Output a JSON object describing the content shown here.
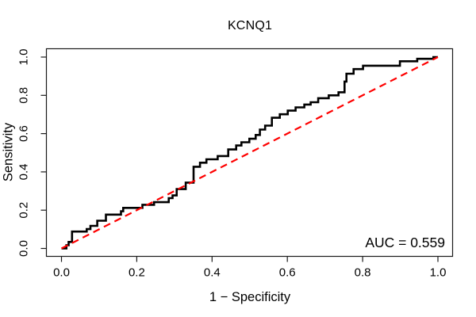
{
  "figure": {
    "title": "KCNQ1",
    "x_axis": {
      "label": "1 − Specificity",
      "tick_labels": [
        "0.0",
        "0.2",
        "0.4",
        "0.6",
        "0.8",
        "1.0"
      ]
    },
    "y_axis": {
      "label": "Sensitivity",
      "tick_labels": [
        "0.0",
        "0.2",
        "0.4",
        "0.6",
        "0.8",
        "1.0"
      ]
    },
    "annotation": {
      "auc_text": "AUC = 0.559"
    },
    "colors": {
      "background": "#ffffff",
      "roc_curve": "#000000",
      "diagonal": "#fe0000",
      "axis": "#1a1a1a",
      "text": "#000000"
    }
  },
  "chart_data": {
    "type": "line",
    "subtype": "roc-step-curve",
    "title": "KCNQ1",
    "xlabel": "1 − Specificity",
    "ylabel": "Sensitivity",
    "xlim": [
      0,
      1
    ],
    "ylim": [
      0,
      1
    ],
    "x_ticks": [
      0,
      0.2,
      0.4,
      0.6,
      0.8,
      1.0
    ],
    "y_ticks": [
      0,
      0.2,
      0.4,
      0.6,
      0.8,
      1.0
    ],
    "grid": false,
    "legend": "none",
    "auc": 0.559,
    "annotation": {
      "text": "AUC = 0.559",
      "position": "bottom-right"
    },
    "series": [
      {
        "name": "ROC curve (KCNQ1)",
        "color": "#000000",
        "line_style": "solid",
        "line_width": 2.6,
        "points": [
          [
            0,
            0
          ],
          [
            0.013,
            0
          ],
          [
            0.013,
            0.017
          ],
          [
            0.019,
            0.017
          ],
          [
            0.019,
            0.034
          ],
          [
            0.028,
            0.034
          ],
          [
            0.028,
            0.088
          ],
          [
            0.067,
            0.088
          ],
          [
            0.067,
            0.101
          ],
          [
            0.077,
            0.101
          ],
          [
            0.077,
            0.118
          ],
          [
            0.095,
            0.118
          ],
          [
            0.095,
            0.145
          ],
          [
            0.118,
            0.145
          ],
          [
            0.118,
            0.177
          ],
          [
            0.158,
            0.177
          ],
          [
            0.158,
            0.194
          ],
          [
            0.164,
            0.194
          ],
          [
            0.164,
            0.212
          ],
          [
            0.215,
            0.212
          ],
          [
            0.215,
            0.228
          ],
          [
            0.246,
            0.228
          ],
          [
            0.246,
            0.242
          ],
          [
            0.285,
            0.242
          ],
          [
            0.285,
            0.263
          ],
          [
            0.295,
            0.263
          ],
          [
            0.295,
            0.277
          ],
          [
            0.306,
            0.277
          ],
          [
            0.306,
            0.31
          ],
          [
            0.33,
            0.31
          ],
          [
            0.33,
            0.344
          ],
          [
            0.351,
            0.344
          ],
          [
            0.351,
            0.427
          ],
          [
            0.368,
            0.427
          ],
          [
            0.368,
            0.448
          ],
          [
            0.385,
            0.448
          ],
          [
            0.385,
            0.466
          ],
          [
            0.415,
            0.466
          ],
          [
            0.415,
            0.483
          ],
          [
            0.443,
            0.483
          ],
          [
            0.443,
            0.517
          ],
          [
            0.464,
            0.517
          ],
          [
            0.464,
            0.538
          ],
          [
            0.478,
            0.538
          ],
          [
            0.478,
            0.555
          ],
          [
            0.499,
            0.555
          ],
          [
            0.499,
            0.573
          ],
          [
            0.516,
            0.573
          ],
          [
            0.516,
            0.593
          ],
          [
            0.527,
            0.593
          ],
          [
            0.527,
            0.621
          ],
          [
            0.541,
            0.621
          ],
          [
            0.541,
            0.642
          ],
          [
            0.559,
            0.642
          ],
          [
            0.559,
            0.683
          ],
          [
            0.58,
            0.683
          ],
          [
            0.58,
            0.701
          ],
          [
            0.601,
            0.701
          ],
          [
            0.601,
            0.72
          ],
          [
            0.622,
            0.72
          ],
          [
            0.622,
            0.737
          ],
          [
            0.645,
            0.737
          ],
          [
            0.645,
            0.752
          ],
          [
            0.662,
            0.752
          ],
          [
            0.662,
            0.764
          ],
          [
            0.682,
            0.764
          ],
          [
            0.682,
            0.785
          ],
          [
            0.71,
            0.785
          ],
          [
            0.71,
            0.8
          ],
          [
            0.736,
            0.8
          ],
          [
            0.736,
            0.816
          ],
          [
            0.752,
            0.816
          ],
          [
            0.752,
            0.872
          ],
          [
            0.757,
            0.872
          ],
          [
            0.757,
            0.913
          ],
          [
            0.776,
            0.913
          ],
          [
            0.776,
            0.937
          ],
          [
            0.801,
            0.937
          ],
          [
            0.801,
            0.955
          ],
          [
            0.899,
            0.955
          ],
          [
            0.899,
            0.978
          ],
          [
            0.945,
            0.978
          ],
          [
            0.945,
            0.991
          ],
          [
            0.988,
            0.991
          ],
          [
            0.988,
            1
          ],
          [
            1,
            1
          ]
        ]
      },
      {
        "name": "Chance diagonal",
        "color": "#fe0000",
        "line_style": "dashed",
        "line_width": 2.2,
        "points": [
          [
            0,
            0
          ],
          [
            1,
            1
          ]
        ]
      }
    ]
  }
}
